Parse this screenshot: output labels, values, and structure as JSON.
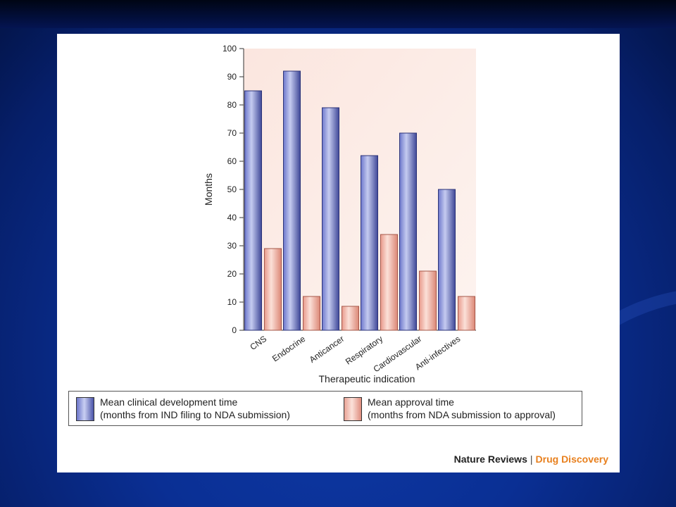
{
  "chart_data": {
    "type": "bar",
    "categories": [
      "CNS",
      "Endocrine",
      "Anticancer",
      "Respiratory",
      "Cardiovascular",
      "Anti-infectives"
    ],
    "series": [
      {
        "name": "Mean clinical development time (months from IND filing to NDA submission)",
        "values": [
          85,
          92,
          79,
          62,
          70,
          50
        ],
        "color": "#5a63b8"
      },
      {
        "name": "Mean approval time (months from NDA submission to approval)",
        "values": [
          29,
          12,
          8.5,
          34,
          21,
          12
        ],
        "color": "#efa999"
      }
    ],
    "xlabel": "Therapeutic indication",
    "ylabel": "Months",
    "ylim": [
      0,
      100
    ],
    "yticks": [
      0,
      10,
      20,
      30,
      40,
      50,
      60,
      70,
      80,
      90,
      100
    ],
    "legend_position": "bottom",
    "grid": false
  },
  "legend": {
    "dev_line1": "Mean clinical development time",
    "dev_line2": "(months from IND filing to NDA submission)",
    "app_line1": "Mean approval time",
    "app_line2": "(months from NDA submission to approval)"
  },
  "credit": {
    "journal": "Nature Reviews",
    "separator": "|",
    "section": "Drug Discovery"
  },
  "colors": {
    "background": "#0a2f94",
    "plot_background": "#fbe8e2",
    "credit_accent": "#e8801e"
  }
}
